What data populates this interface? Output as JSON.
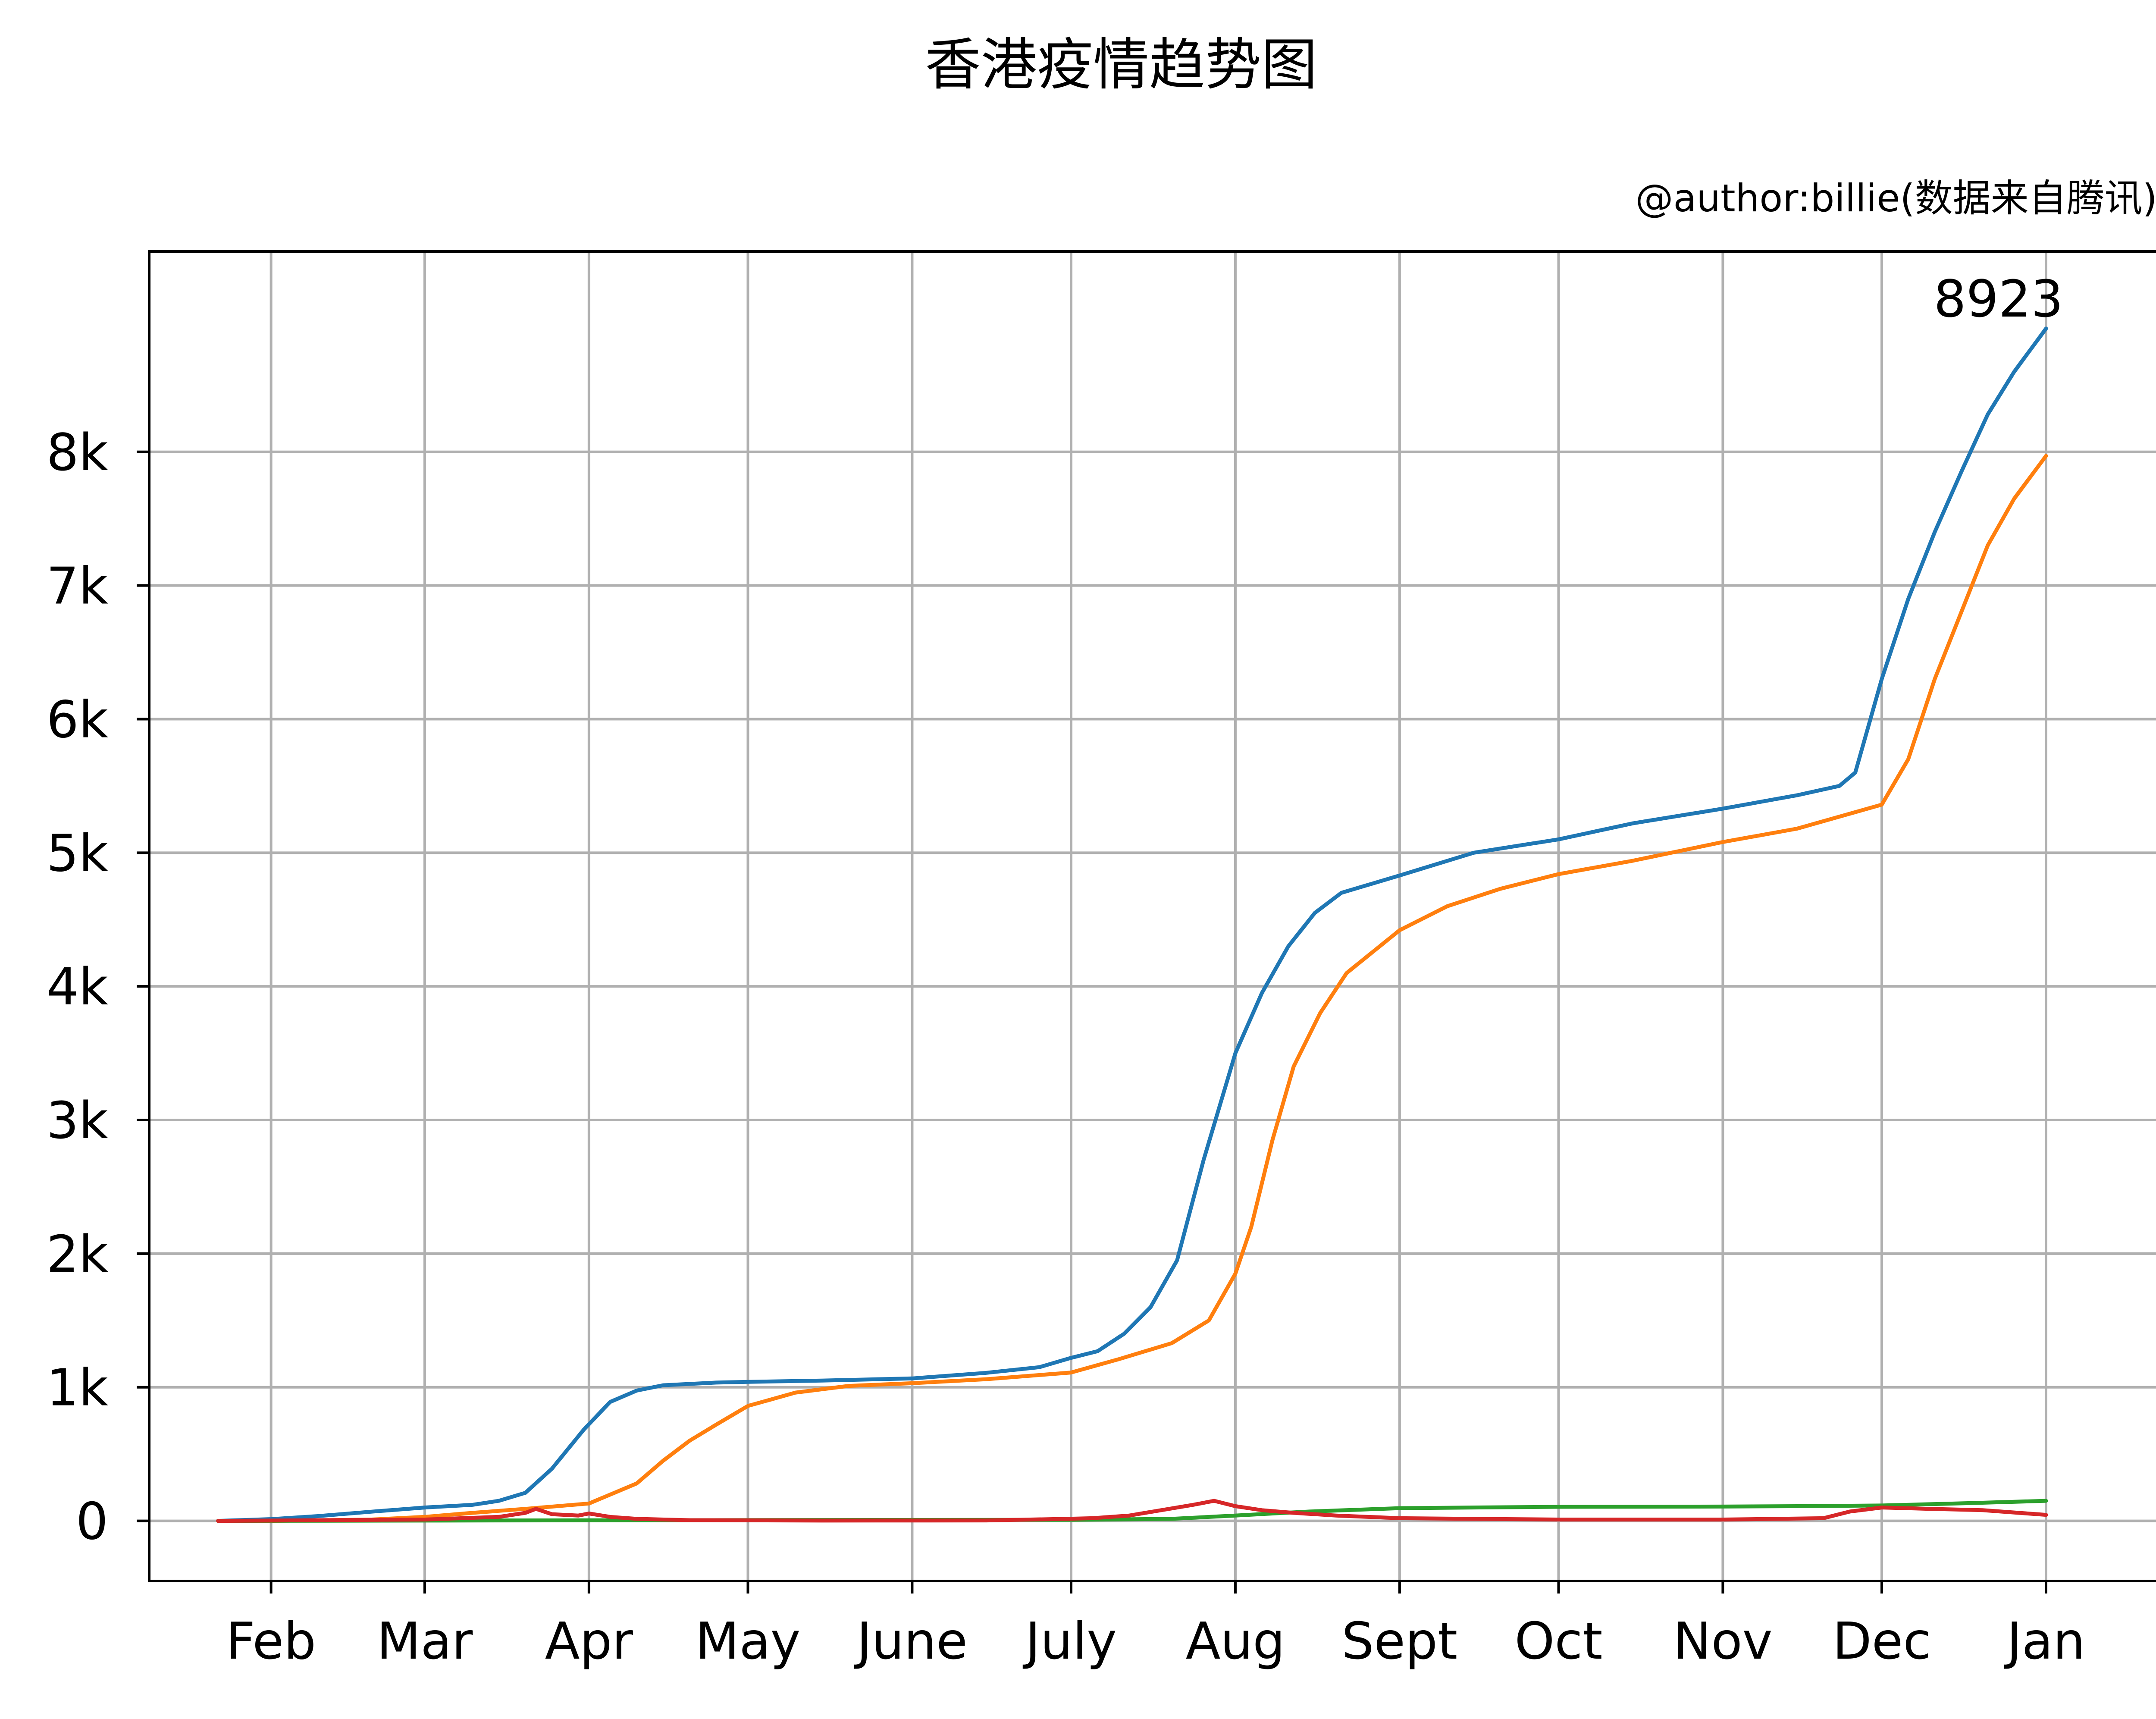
{
  "chart_data": {
    "type": "line",
    "title": "香港疫情趋势图",
    "subtitle": "@author:billie(数据来自腾讯)",
    "xlabel": "",
    "ylabel": "",
    "x_type": "date",
    "xlim": [
      "2020-01-09",
      "2021-01-22"
    ],
    "ylim": [
      -450,
      9500
    ],
    "grid": true,
    "x_ticks": [
      {
        "date": "2020-02-01",
        "label": "Feb"
      },
      {
        "date": "2020-03-01",
        "label": "Mar"
      },
      {
        "date": "2020-04-01",
        "label": "Apr"
      },
      {
        "date": "2020-05-01",
        "label": "May"
      },
      {
        "date": "2020-06-01",
        "label": "June"
      },
      {
        "date": "2020-07-01",
        "label": "July"
      },
      {
        "date": "2020-08-01",
        "label": "Aug"
      },
      {
        "date": "2020-09-01",
        "label": "Sept"
      },
      {
        "date": "2020-10-01",
        "label": "Oct"
      },
      {
        "date": "2020-11-01",
        "label": "Nov"
      },
      {
        "date": "2020-12-01",
        "label": "Dec"
      },
      {
        "date": "2021-01-01",
        "label": "Jan"
      }
    ],
    "y_ticks": [
      {
        "value": 0,
        "label": "0"
      },
      {
        "value": 1000,
        "label": "1k"
      },
      {
        "value": 2000,
        "label": "2k"
      },
      {
        "value": 3000,
        "label": "3k"
      },
      {
        "value": 4000,
        "label": "4k"
      },
      {
        "value": 5000,
        "label": "5k"
      },
      {
        "value": 6000,
        "label": "6k"
      },
      {
        "value": 7000,
        "label": "7k"
      },
      {
        "value": 8000,
        "label": "8k"
      }
    ],
    "annotations": [
      {
        "text": "8923",
        "date": "2021-01-01",
        "value": 8923
      }
    ],
    "series": [
      {
        "color": "#1f77b4",
        "points": [
          [
            "2020-01-22",
            0
          ],
          [
            "2020-02-01",
            13
          ],
          [
            "2020-02-10",
            36
          ],
          [
            "2020-02-20",
            69
          ],
          [
            "2020-03-01",
            100
          ],
          [
            "2020-03-10",
            120
          ],
          [
            "2020-03-15",
            150
          ],
          [
            "2020-03-20",
            210
          ],
          [
            "2020-03-25",
            390
          ],
          [
            "2020-03-31",
            682
          ],
          [
            "2020-04-05",
            890
          ],
          [
            "2020-04-10",
            975
          ],
          [
            "2020-04-15",
            1015
          ],
          [
            "2020-04-25",
            1035
          ],
          [
            "2020-05-01",
            1040
          ],
          [
            "2020-05-15",
            1050
          ],
          [
            "2020-06-01",
            1066
          ],
          [
            "2020-06-15",
            1108
          ],
          [
            "2020-06-25",
            1150
          ],
          [
            "2020-07-01",
            1220
          ],
          [
            "2020-07-06",
            1270
          ],
          [
            "2020-07-11",
            1400
          ],
          [
            "2020-07-16",
            1600
          ],
          [
            "2020-07-21",
            1950
          ],
          [
            "2020-07-26",
            2700
          ],
          [
            "2020-08-01",
            3500
          ],
          [
            "2020-08-06",
            3950
          ],
          [
            "2020-08-11",
            4300
          ],
          [
            "2020-08-16",
            4550
          ],
          [
            "2020-08-21",
            4700
          ],
          [
            "2020-09-01",
            4830
          ],
          [
            "2020-09-15",
            5000
          ],
          [
            "2020-10-01",
            5100
          ],
          [
            "2020-10-15",
            5220
          ],
          [
            "2020-11-01",
            5330
          ],
          [
            "2020-11-15",
            5430
          ],
          [
            "2020-11-23",
            5500
          ],
          [
            "2020-11-26",
            5600
          ],
          [
            "2020-12-01",
            6300
          ],
          [
            "2020-12-06",
            6900
          ],
          [
            "2020-12-11",
            7400
          ],
          [
            "2020-12-16",
            7850
          ],
          [
            "2020-12-21",
            8280
          ],
          [
            "2020-12-26",
            8600
          ],
          [
            "2021-01-01",
            8923
          ]
        ]
      },
      {
        "color": "#ff7f0e",
        "points": [
          [
            "2020-01-22",
            0
          ],
          [
            "2020-02-01",
            0
          ],
          [
            "2020-02-20",
            10
          ],
          [
            "2020-03-01",
            30
          ],
          [
            "2020-03-10",
            60
          ],
          [
            "2020-03-20",
            90
          ],
          [
            "2020-04-01",
            130
          ],
          [
            "2020-04-10",
            280
          ],
          [
            "2020-04-15",
            450
          ],
          [
            "2020-04-20",
            600
          ],
          [
            "2020-04-25",
            720
          ],
          [
            "2020-05-01",
            860
          ],
          [
            "2020-05-10",
            960
          ],
          [
            "2020-05-20",
            1010
          ],
          [
            "2020-06-01",
            1030
          ],
          [
            "2020-06-15",
            1060
          ],
          [
            "2020-07-01",
            1110
          ],
          [
            "2020-07-10",
            1210
          ],
          [
            "2020-07-20",
            1330
          ],
          [
            "2020-07-27",
            1500
          ],
          [
            "2020-08-01",
            1850
          ],
          [
            "2020-08-04",
            2200
          ],
          [
            "2020-08-08",
            2850
          ],
          [
            "2020-08-12",
            3400
          ],
          [
            "2020-08-17",
            3800
          ],
          [
            "2020-08-22",
            4100
          ],
          [
            "2020-09-01",
            4420
          ],
          [
            "2020-09-10",
            4600
          ],
          [
            "2020-09-20",
            4730
          ],
          [
            "2020-10-01",
            4840
          ],
          [
            "2020-10-15",
            4940
          ],
          [
            "2020-11-01",
            5080
          ],
          [
            "2020-11-15",
            5180
          ],
          [
            "2020-12-01",
            5360
          ],
          [
            "2020-12-06",
            5700
          ],
          [
            "2020-12-11",
            6300
          ],
          [
            "2020-12-16",
            6800
          ],
          [
            "2020-12-21",
            7300
          ],
          [
            "2020-12-26",
            7650
          ],
          [
            "2021-01-01",
            7970
          ]
        ]
      },
      {
        "color": "#2ca02c",
        "points": [
          [
            "2020-01-22",
            0
          ],
          [
            "2020-03-01",
            2
          ],
          [
            "2020-04-01",
            4
          ],
          [
            "2020-06-01",
            7
          ],
          [
            "2020-07-01",
            8
          ],
          [
            "2020-07-20",
            15
          ],
          [
            "2020-08-01",
            40
          ],
          [
            "2020-08-15",
            70
          ],
          [
            "2020-09-01",
            95
          ],
          [
            "2020-10-01",
            105
          ],
          [
            "2020-11-01",
            107
          ],
          [
            "2020-11-15",
            110
          ],
          [
            "2020-12-01",
            115
          ],
          [
            "2020-12-15",
            130
          ],
          [
            "2021-01-01",
            150
          ]
        ]
      },
      {
        "color": "#d62728",
        "points": [
          [
            "2020-01-22",
            0
          ],
          [
            "2020-03-01",
            10
          ],
          [
            "2020-03-15",
            30
          ],
          [
            "2020-03-20",
            60
          ],
          [
            "2020-03-22",
            90
          ],
          [
            "2020-03-25",
            50
          ],
          [
            "2020-03-30",
            40
          ],
          [
            "2020-04-01",
            55
          ],
          [
            "2020-04-05",
            30
          ],
          [
            "2020-04-10",
            15
          ],
          [
            "2020-04-20",
            5
          ],
          [
            "2020-05-15",
            2
          ],
          [
            "2020-06-15",
            3
          ],
          [
            "2020-06-30",
            15
          ],
          [
            "2020-07-05",
            20
          ],
          [
            "2020-07-12",
            40
          ],
          [
            "2020-07-18",
            80
          ],
          [
            "2020-07-24",
            120
          ],
          [
            "2020-07-28",
            150
          ],
          [
            "2020-08-01",
            110
          ],
          [
            "2020-08-06",
            80
          ],
          [
            "2020-08-12",
            60
          ],
          [
            "2020-08-20",
            40
          ],
          [
            "2020-09-01",
            20
          ],
          [
            "2020-10-01",
            10
          ],
          [
            "2020-11-01",
            10
          ],
          [
            "2020-11-20",
            20
          ],
          [
            "2020-11-25",
            70
          ],
          [
            "2020-12-01",
            100
          ],
          [
            "2020-12-10",
            90
          ],
          [
            "2020-12-20",
            80
          ],
          [
            "2021-01-01",
            45
          ]
        ]
      }
    ]
  }
}
